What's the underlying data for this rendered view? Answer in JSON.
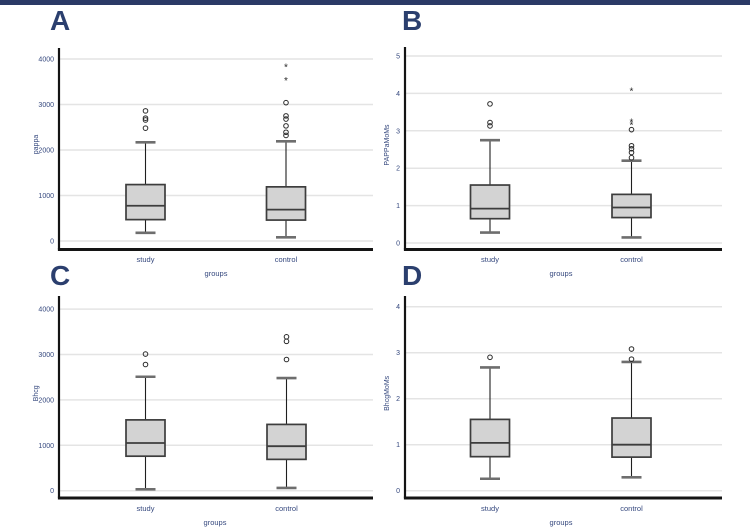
{
  "colors": {
    "top_bar": "#2b3a66",
    "letter": "#2b3f6e",
    "label": "#35487e",
    "grid": "#e4e4e4",
    "axis": "#141414",
    "box_fill": "#d3d3d3",
    "box_stroke": "#3d3d3d",
    "whisker": "#1f1f1f",
    "cap": "#6e6e6e",
    "outlier": "#2a2a2a"
  },
  "chart_data": [
    {
      "type": "boxplot",
      "panel_label": "A",
      "ylabel": "pappa",
      "xlabel": "groups",
      "categories": [
        "study",
        "control"
      ],
      "yticks": [
        0,
        1000,
        2000,
        3000,
        4000
      ],
      "ylim": [
        0,
        4250
      ],
      "grid": true,
      "series": [
        {
          "category": "study",
          "whisker_low": 180,
          "q1": 470,
          "median": 775,
          "q3": 1240,
          "whisker_high": 2170,
          "outliers": [
            2480,
            2660,
            2700,
            2860
          ],
          "extremes": []
        },
        {
          "category": "control",
          "whisker_low": 80,
          "q1": 460,
          "median": 690,
          "q3": 1190,
          "whisker_high": 2190,
          "outliers": [
            2320,
            2390,
            2530,
            2680,
            2750,
            3040
          ],
          "extremes": [
            3540,
            3830
          ]
        }
      ]
    },
    {
      "type": "boxplot",
      "panel_label": "B",
      "ylabel": "PAPPaMoMs",
      "xlabel": "groups",
      "categories": [
        "study",
        "control"
      ],
      "yticks": [
        0,
        1,
        2,
        3,
        4,
        5
      ],
      "ylim": [
        0,
        5.3
      ],
      "grid": true,
      "series": [
        {
          "category": "study",
          "whisker_low": 0.28,
          "q1": 0.65,
          "median": 0.92,
          "q3": 1.55,
          "whisker_high": 2.75,
          "outliers": [
            3.13,
            3.22,
            3.72
          ],
          "extremes": []
        },
        {
          "category": "control",
          "whisker_low": 0.15,
          "q1": 0.68,
          "median": 0.95,
          "q3": 1.3,
          "whisker_high": 2.2,
          "outliers": [
            2.28,
            2.42,
            2.52,
            2.6,
            3.03
          ],
          "extremes": [
            3.17,
            3.25,
            4.08
          ]
        }
      ]
    },
    {
      "type": "boxplot",
      "panel_label": "C",
      "ylabel": "Bhcg",
      "xlabel": "groups",
      "categories": [
        "study",
        "control"
      ],
      "yticks": [
        0,
        1000,
        2000,
        3000,
        4000
      ],
      "ylim": [
        0,
        4300
      ],
      "grid": true,
      "series": [
        {
          "category": "study",
          "whisker_low": 30,
          "q1": 760,
          "median": 1050,
          "q3": 1560,
          "whisker_high": 2510,
          "outliers": [
            2780,
            3010
          ],
          "extremes": []
        },
        {
          "category": "control",
          "whisker_low": 60,
          "q1": 690,
          "median": 980,
          "q3": 1460,
          "whisker_high": 2480,
          "outliers": [
            2890,
            3290,
            3390
          ],
          "extremes": []
        }
      ]
    },
    {
      "type": "boxplot",
      "panel_label": "D",
      "ylabel": "BhcgMoMs",
      "xlabel": "groups",
      "categories": [
        "study",
        "control"
      ],
      "yticks": [
        0,
        1,
        2,
        3,
        4
      ],
      "ylim": [
        0,
        4.25
      ],
      "grid": true,
      "series": [
        {
          "category": "study",
          "whisker_low": 0.26,
          "q1": 0.74,
          "median": 1.04,
          "q3": 1.55,
          "whisker_high": 2.68,
          "outliers": [
            2.9
          ],
          "extremes": []
        },
        {
          "category": "control",
          "whisker_low": 0.29,
          "q1": 0.73,
          "median": 1.0,
          "q3": 1.58,
          "whisker_high": 2.8,
          "outliers": [
            2.86,
            3.08
          ],
          "extremes": []
        }
      ]
    }
  ]
}
